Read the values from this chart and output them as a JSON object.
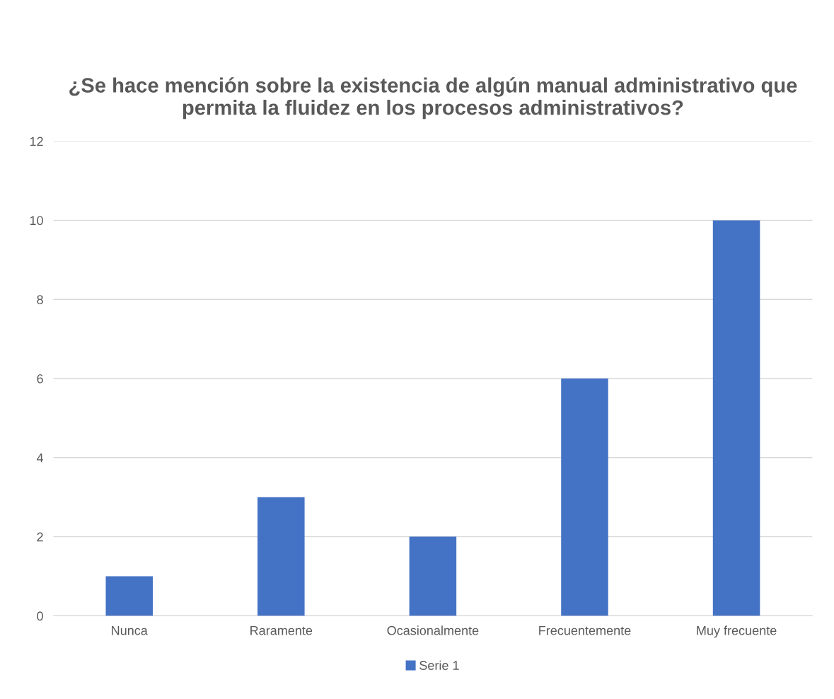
{
  "chart_data": {
    "type": "bar",
    "title": "¿Se hace mención sobre la existencia de algún manual administrativo que permita la fluidez en los procesos administrativos?",
    "categories": [
      "Nunca",
      "Raramente",
      "Ocasionalmente",
      "Frecuentemente",
      "Muy frecuente"
    ],
    "series": [
      {
        "name": "Serie 1",
        "color": "#4472c4",
        "values": [
          1,
          3,
          2,
          6,
          10
        ]
      }
    ],
    "ylim": [
      0,
      12
    ],
    "yticks": [
      0,
      2,
      4,
      6,
      8,
      10,
      12
    ],
    "grid": "y",
    "legend": "bottom"
  }
}
